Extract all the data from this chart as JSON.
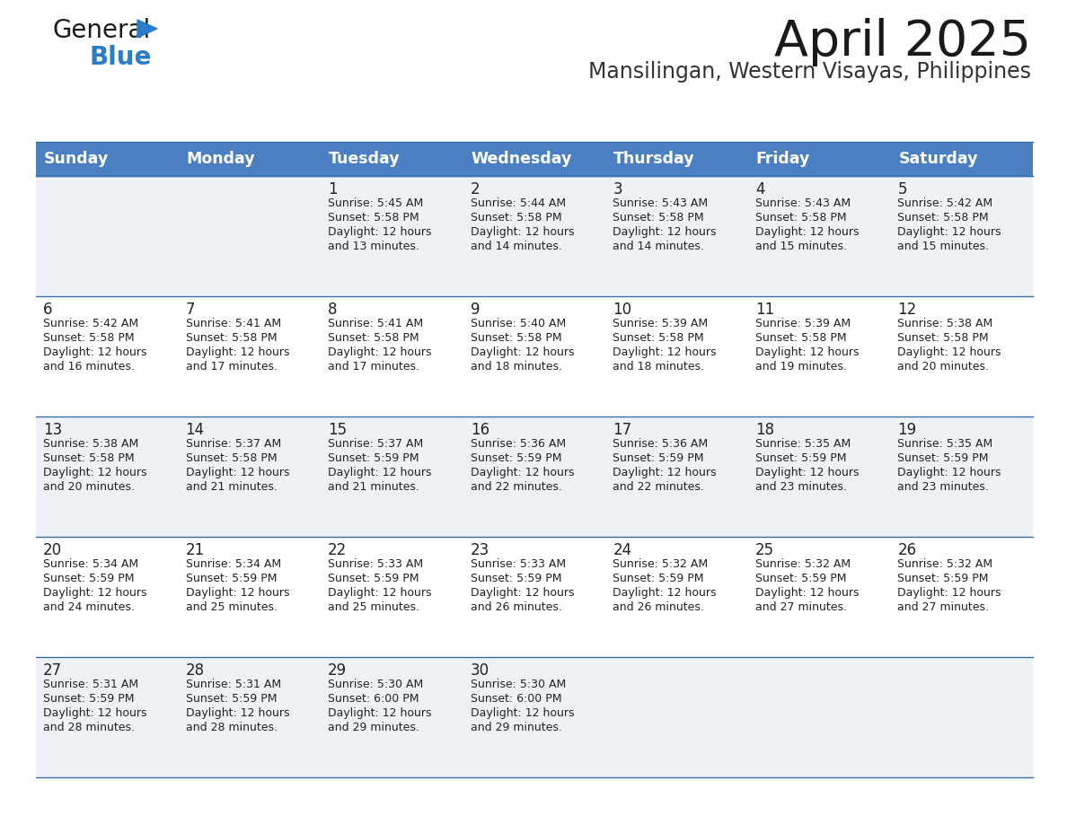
{
  "title": "April 2025",
  "subtitle": "Mansilingan, Western Visayas, Philippines",
  "days_of_week": [
    "Sunday",
    "Monday",
    "Tuesday",
    "Wednesday",
    "Thursday",
    "Friday",
    "Saturday"
  ],
  "header_bg": "#4a7fc1",
  "header_text_color": "#ffffff",
  "row_bg_light": "#eef2f7",
  "row_bg_white": "#ffffff",
  "cell_text_color": "#222222",
  "border_color": "#3a6faa",
  "logo_color": "#2a7ec8",
  "calendar": [
    [
      {
        "day": "",
        "sunrise": "",
        "sunset": "",
        "daylight": ""
      },
      {
        "day": "",
        "sunrise": "",
        "sunset": "",
        "daylight": ""
      },
      {
        "day": "1",
        "sunrise": "Sunrise: 5:45 AM",
        "sunset": "Sunset: 5:58 PM",
        "daylight": "Daylight: 12 hours\nand 13 minutes."
      },
      {
        "day": "2",
        "sunrise": "Sunrise: 5:44 AM",
        "sunset": "Sunset: 5:58 PM",
        "daylight": "Daylight: 12 hours\nand 14 minutes."
      },
      {
        "day": "3",
        "sunrise": "Sunrise: 5:43 AM",
        "sunset": "Sunset: 5:58 PM",
        "daylight": "Daylight: 12 hours\nand 14 minutes."
      },
      {
        "day": "4",
        "sunrise": "Sunrise: 5:43 AM",
        "sunset": "Sunset: 5:58 PM",
        "daylight": "Daylight: 12 hours\nand 15 minutes."
      },
      {
        "day": "5",
        "sunrise": "Sunrise: 5:42 AM",
        "sunset": "Sunset: 5:58 PM",
        "daylight": "Daylight: 12 hours\nand 15 minutes."
      }
    ],
    [
      {
        "day": "6",
        "sunrise": "Sunrise: 5:42 AM",
        "sunset": "Sunset: 5:58 PM",
        "daylight": "Daylight: 12 hours\nand 16 minutes."
      },
      {
        "day": "7",
        "sunrise": "Sunrise: 5:41 AM",
        "sunset": "Sunset: 5:58 PM",
        "daylight": "Daylight: 12 hours\nand 17 minutes."
      },
      {
        "day": "8",
        "sunrise": "Sunrise: 5:41 AM",
        "sunset": "Sunset: 5:58 PM",
        "daylight": "Daylight: 12 hours\nand 17 minutes."
      },
      {
        "day": "9",
        "sunrise": "Sunrise: 5:40 AM",
        "sunset": "Sunset: 5:58 PM",
        "daylight": "Daylight: 12 hours\nand 18 minutes."
      },
      {
        "day": "10",
        "sunrise": "Sunrise: 5:39 AM",
        "sunset": "Sunset: 5:58 PM",
        "daylight": "Daylight: 12 hours\nand 18 minutes."
      },
      {
        "day": "11",
        "sunrise": "Sunrise: 5:39 AM",
        "sunset": "Sunset: 5:58 PM",
        "daylight": "Daylight: 12 hours\nand 19 minutes."
      },
      {
        "day": "12",
        "sunrise": "Sunrise: 5:38 AM",
        "sunset": "Sunset: 5:58 PM",
        "daylight": "Daylight: 12 hours\nand 20 minutes."
      }
    ],
    [
      {
        "day": "13",
        "sunrise": "Sunrise: 5:38 AM",
        "sunset": "Sunset: 5:58 PM",
        "daylight": "Daylight: 12 hours\nand 20 minutes."
      },
      {
        "day": "14",
        "sunrise": "Sunrise: 5:37 AM",
        "sunset": "Sunset: 5:58 PM",
        "daylight": "Daylight: 12 hours\nand 21 minutes."
      },
      {
        "day": "15",
        "sunrise": "Sunrise: 5:37 AM",
        "sunset": "Sunset: 5:59 PM",
        "daylight": "Daylight: 12 hours\nand 21 minutes."
      },
      {
        "day": "16",
        "sunrise": "Sunrise: 5:36 AM",
        "sunset": "Sunset: 5:59 PM",
        "daylight": "Daylight: 12 hours\nand 22 minutes."
      },
      {
        "day": "17",
        "sunrise": "Sunrise: 5:36 AM",
        "sunset": "Sunset: 5:59 PM",
        "daylight": "Daylight: 12 hours\nand 22 minutes."
      },
      {
        "day": "18",
        "sunrise": "Sunrise: 5:35 AM",
        "sunset": "Sunset: 5:59 PM",
        "daylight": "Daylight: 12 hours\nand 23 minutes."
      },
      {
        "day": "19",
        "sunrise": "Sunrise: 5:35 AM",
        "sunset": "Sunset: 5:59 PM",
        "daylight": "Daylight: 12 hours\nand 23 minutes."
      }
    ],
    [
      {
        "day": "20",
        "sunrise": "Sunrise: 5:34 AM",
        "sunset": "Sunset: 5:59 PM",
        "daylight": "Daylight: 12 hours\nand 24 minutes."
      },
      {
        "day": "21",
        "sunrise": "Sunrise: 5:34 AM",
        "sunset": "Sunset: 5:59 PM",
        "daylight": "Daylight: 12 hours\nand 25 minutes."
      },
      {
        "day": "22",
        "sunrise": "Sunrise: 5:33 AM",
        "sunset": "Sunset: 5:59 PM",
        "daylight": "Daylight: 12 hours\nand 25 minutes."
      },
      {
        "day": "23",
        "sunrise": "Sunrise: 5:33 AM",
        "sunset": "Sunset: 5:59 PM",
        "daylight": "Daylight: 12 hours\nand 26 minutes."
      },
      {
        "day": "24",
        "sunrise": "Sunrise: 5:32 AM",
        "sunset": "Sunset: 5:59 PM",
        "daylight": "Daylight: 12 hours\nand 26 minutes."
      },
      {
        "day": "25",
        "sunrise": "Sunrise: 5:32 AM",
        "sunset": "Sunset: 5:59 PM",
        "daylight": "Daylight: 12 hours\nand 27 minutes."
      },
      {
        "day": "26",
        "sunrise": "Sunrise: 5:32 AM",
        "sunset": "Sunset: 5:59 PM",
        "daylight": "Daylight: 12 hours\nand 27 minutes."
      }
    ],
    [
      {
        "day": "27",
        "sunrise": "Sunrise: 5:31 AM",
        "sunset": "Sunset: 5:59 PM",
        "daylight": "Daylight: 12 hours\nand 28 minutes."
      },
      {
        "day": "28",
        "sunrise": "Sunrise: 5:31 AM",
        "sunset": "Sunset: 5:59 PM",
        "daylight": "Daylight: 12 hours\nand 28 minutes."
      },
      {
        "day": "29",
        "sunrise": "Sunrise: 5:30 AM",
        "sunset": "Sunset: 6:00 PM",
        "daylight": "Daylight: 12 hours\nand 29 minutes."
      },
      {
        "day": "30",
        "sunrise": "Sunrise: 5:30 AM",
        "sunset": "Sunset: 6:00 PM",
        "daylight": "Daylight: 12 hours\nand 29 minutes."
      },
      {
        "day": "",
        "sunrise": "",
        "sunset": "",
        "daylight": ""
      },
      {
        "day": "",
        "sunrise": "",
        "sunset": "",
        "daylight": ""
      },
      {
        "day": "",
        "sunrise": "",
        "sunset": "",
        "daylight": ""
      }
    ]
  ]
}
